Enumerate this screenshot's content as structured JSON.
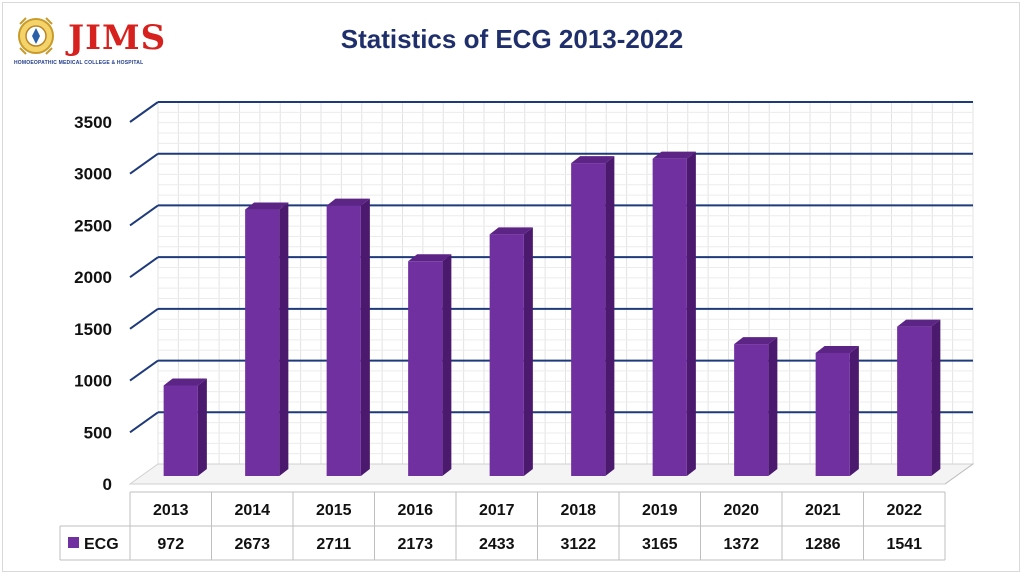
{
  "logo": {
    "name": "JIMS",
    "subtitle": "HOMOEOPATHIC MEDICAL COLLEGE & HOSPITAL"
  },
  "colors": {
    "bar_front": "#7030A0",
    "bar_side": "#4B1A6E",
    "bar_top": "#5C2485",
    "gridline": "#1F3A7A",
    "title": "#1F2F6B",
    "logo_red": "#D6211E"
  },
  "chart_data": {
    "type": "bar",
    "style": "3d-column",
    "title": "Statistics of ECG 2013-2022",
    "categories": [
      "2013",
      "2014",
      "2015",
      "2016",
      "2017",
      "2018",
      "2019",
      "2020",
      "2021",
      "2022"
    ],
    "series": [
      {
        "name": "ECG",
        "values": [
          972,
          2673,
          2711,
          2173,
          2433,
          3122,
          3165,
          1372,
          1286,
          1541
        ]
      }
    ],
    "yticks": [
      0,
      500,
      1000,
      1500,
      2000,
      2500,
      3000,
      3500
    ],
    "ylim": [
      0,
      3500
    ],
    "grid": true,
    "data_table": true
  }
}
